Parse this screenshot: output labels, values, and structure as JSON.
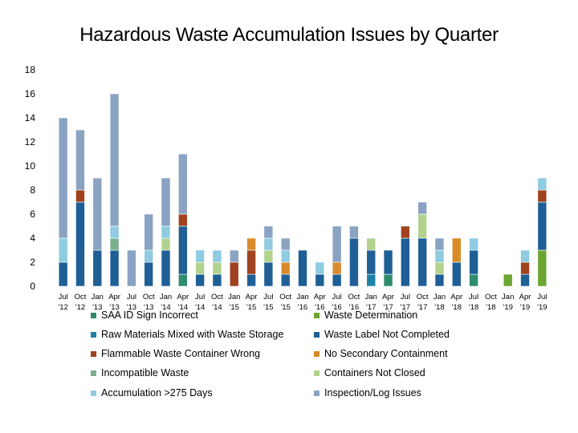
{
  "chart_data": {
    "type": "bar",
    "stacked": true,
    "title": "Hazardous Waste Accumulation Issues by Quarter",
    "xlabel": "",
    "ylabel": "",
    "ylim": [
      0,
      18
    ],
    "yticks": [
      0,
      2,
      4,
      6,
      8,
      10,
      12,
      14,
      16,
      18
    ],
    "grid": false,
    "legend_position": "bottom",
    "categories": [
      [
        "Jul",
        "'12"
      ],
      [
        "Oct",
        "'12"
      ],
      [
        "Jan",
        "'13"
      ],
      [
        "Apr",
        "'13"
      ],
      [
        "Jul",
        "'13"
      ],
      [
        "Oct",
        "'13"
      ],
      [
        "Jan",
        "'14"
      ],
      [
        "Apr",
        "'14"
      ],
      [
        "Jul",
        "'14"
      ],
      [
        "Oct",
        "'14"
      ],
      [
        "Jan",
        "'15"
      ],
      [
        "Apr",
        "'15"
      ],
      [
        "Jul",
        "'15"
      ],
      [
        "Oct",
        "'15"
      ],
      [
        "Jan",
        "'16"
      ],
      [
        "Apr",
        "'16"
      ],
      [
        "Jul",
        "'16"
      ],
      [
        "Oct",
        "'16"
      ],
      [
        "Jan",
        "'17"
      ],
      [
        "Apr",
        "'17"
      ],
      [
        "Jul",
        "'17"
      ],
      [
        "Oct",
        "'17"
      ],
      [
        "Jan",
        "'18"
      ],
      [
        "Apr",
        "'18"
      ],
      [
        "Jul",
        "'18"
      ],
      [
        "Oct",
        "'18"
      ],
      [
        "Jan",
        "'19"
      ],
      [
        "Apr",
        "'19"
      ],
      [
        "Jul",
        "'19"
      ]
    ],
    "series": [
      {
        "name": "SAA ID Sign Incorrect",
        "color": "#2e8b6e",
        "values": [
          0,
          0,
          0,
          0,
          0,
          0,
          0,
          1,
          0,
          0,
          0,
          0,
          0,
          0,
          0,
          0,
          0,
          0,
          0,
          1,
          0,
          0,
          0,
          0,
          1,
          0,
          0,
          0,
          0
        ]
      },
      {
        "name": "Waste Determination",
        "color": "#6aa631",
        "values": [
          0,
          0,
          0,
          0,
          0,
          0,
          0,
          0,
          0,
          0,
          0,
          0,
          0,
          0,
          0,
          0,
          0,
          0,
          0,
          0,
          0,
          0,
          0,
          0,
          0,
          0,
          1,
          0,
          3
        ]
      },
      {
        "name": "Raw Materials Mixed with Waste Storage",
        "color": "#1b82a8",
        "values": [
          0,
          0,
          0,
          0,
          0,
          0,
          0,
          0,
          0,
          0,
          0,
          0,
          0,
          0,
          0,
          0,
          0,
          0,
          1,
          0,
          0,
          0,
          0,
          0,
          0,
          0,
          0,
          0,
          0
        ]
      },
      {
        "name": "Waste Label Not Completed",
        "color": "#1f5f96",
        "values": [
          2,
          7,
          3,
          3,
          0,
          2,
          3,
          4,
          1,
          1,
          0,
          1,
          2,
          1,
          3,
          1,
          1,
          4,
          2,
          2,
          4,
          4,
          1,
          2,
          2,
          0,
          0,
          1,
          4
        ]
      },
      {
        "name": "Flammable Waste Container Wrong",
        "color": "#a0421f",
        "values": [
          0,
          1,
          0,
          0,
          0,
          0,
          0,
          1,
          0,
          0,
          2,
          2,
          0,
          0,
          0,
          0,
          0,
          0,
          0,
          0,
          1,
          0,
          0,
          0,
          0,
          0,
          0,
          1,
          1
        ]
      },
      {
        "name": "No Secondary Containment",
        "color": "#d98b2b",
        "values": [
          0,
          0,
          0,
          0,
          0,
          0,
          0,
          0,
          0,
          0,
          0,
          1,
          0,
          1,
          0,
          0,
          1,
          0,
          0,
          0,
          0,
          0,
          0,
          2,
          0,
          0,
          0,
          0,
          0
        ]
      },
      {
        "name": "Incompatible Waste",
        "color": "#7aae8f",
        "values": [
          0,
          0,
          0,
          1,
          0,
          0,
          0,
          0,
          0,
          0,
          0,
          0,
          0,
          0,
          0,
          0,
          0,
          0,
          0,
          0,
          0,
          0,
          0,
          0,
          0,
          0,
          0,
          0,
          0
        ]
      },
      {
        "name": "Containers Not Closed",
        "color": "#b2d28e",
        "values": [
          0,
          0,
          0,
          0,
          0,
          0,
          1,
          0,
          1,
          1,
          0,
          0,
          1,
          0,
          0,
          0,
          0,
          0,
          1,
          0,
          0,
          2,
          1,
          0,
          0,
          0,
          0,
          0,
          0
        ]
      },
      {
        "name": "Accumulation >275 Days",
        "color": "#8fcbe1",
        "values": [
          2,
          0,
          0,
          1,
          0,
          1,
          1,
          0,
          1,
          1,
          0,
          0,
          1,
          1,
          0,
          1,
          0,
          0,
          0,
          0,
          0,
          0,
          1,
          0,
          1,
          0,
          0,
          1,
          1
        ]
      },
      {
        "name": "Inspection/Log Issues",
        "color": "#8aa3c2",
        "values": [
          10,
          5,
          6,
          11,
          3,
          3,
          4,
          5,
          0,
          0,
          1,
          0,
          1,
          1,
          0,
          0,
          3,
          1,
          0,
          0,
          0,
          1,
          1,
          0,
          0,
          0,
          0,
          0,
          0
        ]
      }
    ],
    "legend_order": [
      "SAA ID Sign Incorrect",
      "Waste Determination",
      "Raw Materials Mixed with Waste Storage",
      "Waste Label Not Completed",
      "Flammable Waste Container Wrong",
      "No Secondary Containment",
      "Incompatible Waste",
      "Containers Not Closed",
      "Accumulation >275 Days",
      "Inspection/Log Issues"
    ]
  }
}
